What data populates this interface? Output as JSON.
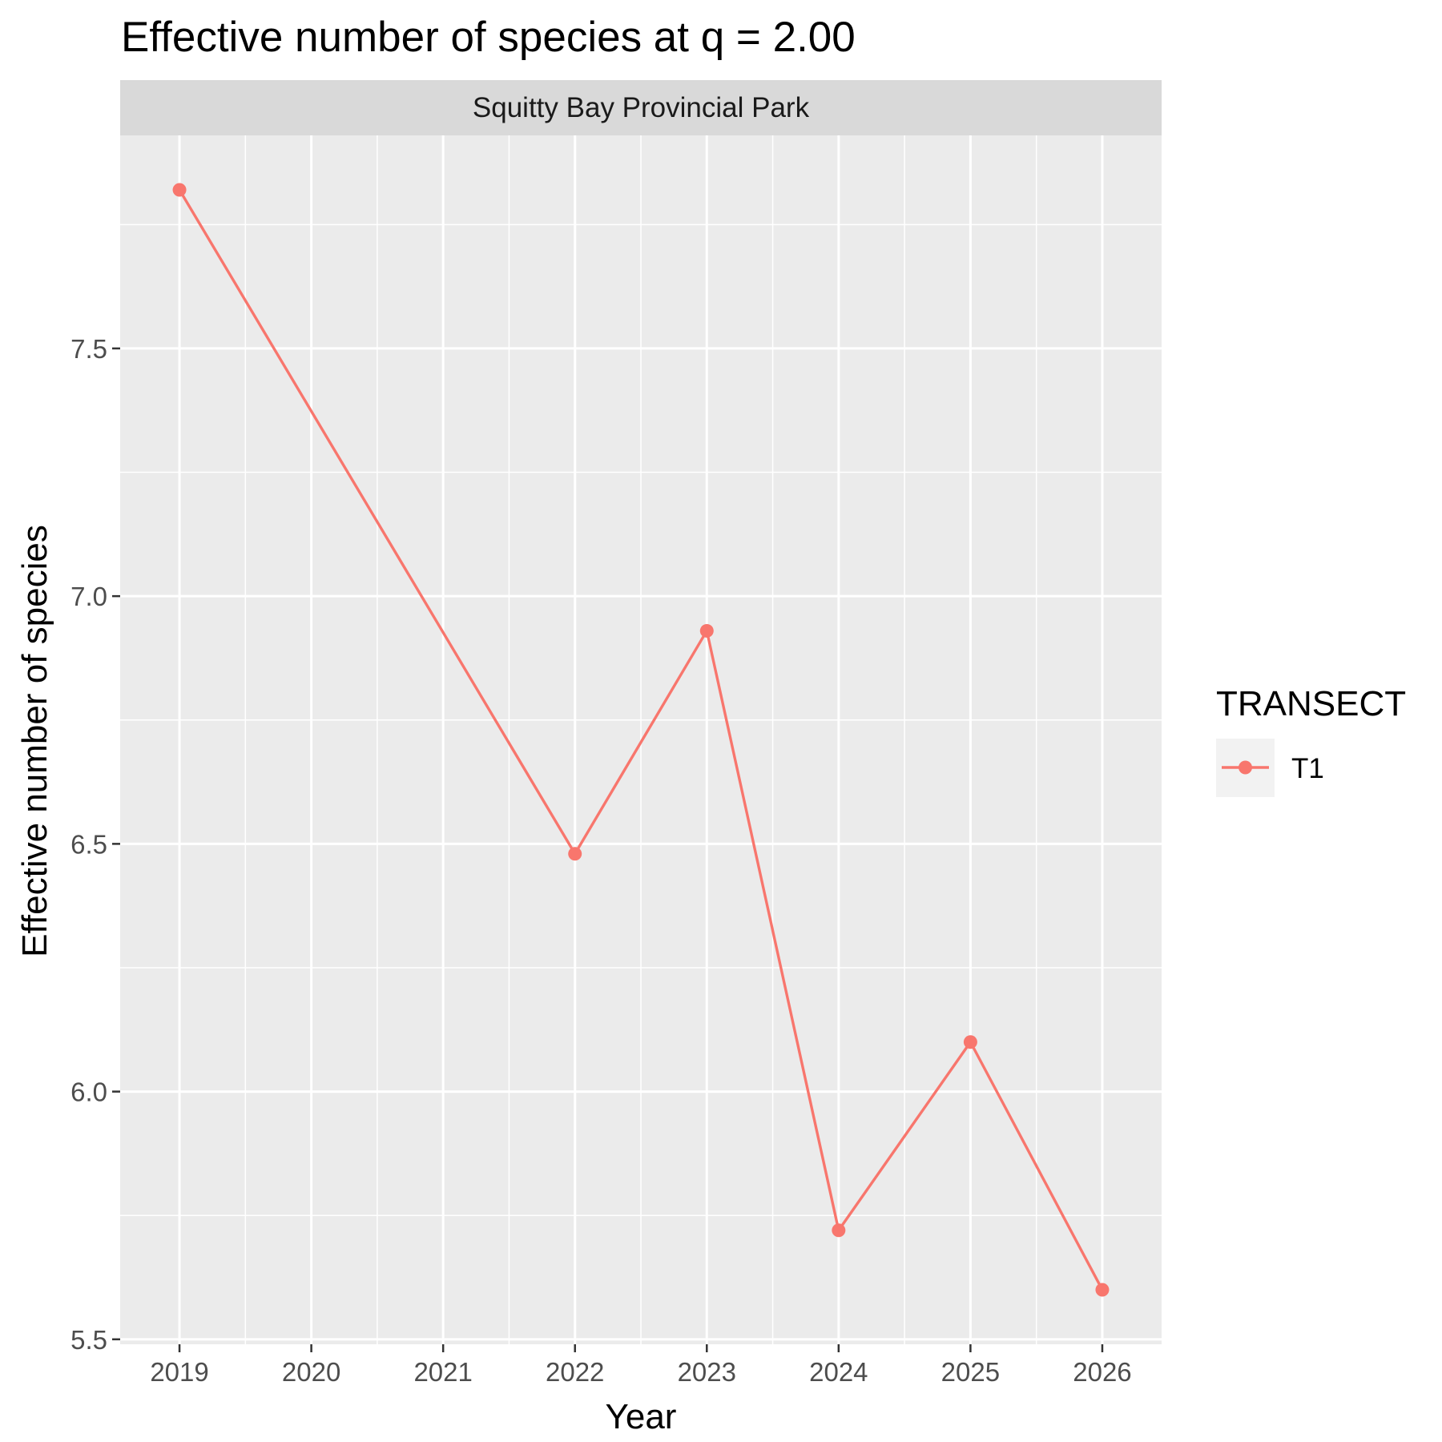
{
  "chart_data": {
    "type": "line",
    "title": "Effective number of species at q = 2.00",
    "facet_label": "Squitty Bay Provincial Park",
    "xlabel": "Year",
    "ylabel": "Effective number of species",
    "x_ticks": [
      "2019",
      "2020",
      "2021",
      "2022",
      "2023",
      "2024",
      "2025",
      "2026"
    ],
    "y_ticks": [
      "5.5",
      "6.0",
      "6.5",
      "7.0",
      "7.5"
    ],
    "xlim": [
      2018.55,
      2026.45
    ],
    "ylim": [
      5.49,
      7.93
    ],
    "grid": true,
    "legend": {
      "title": "TRANSECT",
      "position": "right"
    },
    "series": [
      {
        "name": "T1",
        "color": "#F8766D",
        "x": [
          2019,
          2022,
          2023,
          2024,
          2025,
          2026
        ],
        "y": [
          7.82,
          6.48,
          6.93,
          5.72,
          6.1,
          5.6
        ]
      }
    ]
  }
}
